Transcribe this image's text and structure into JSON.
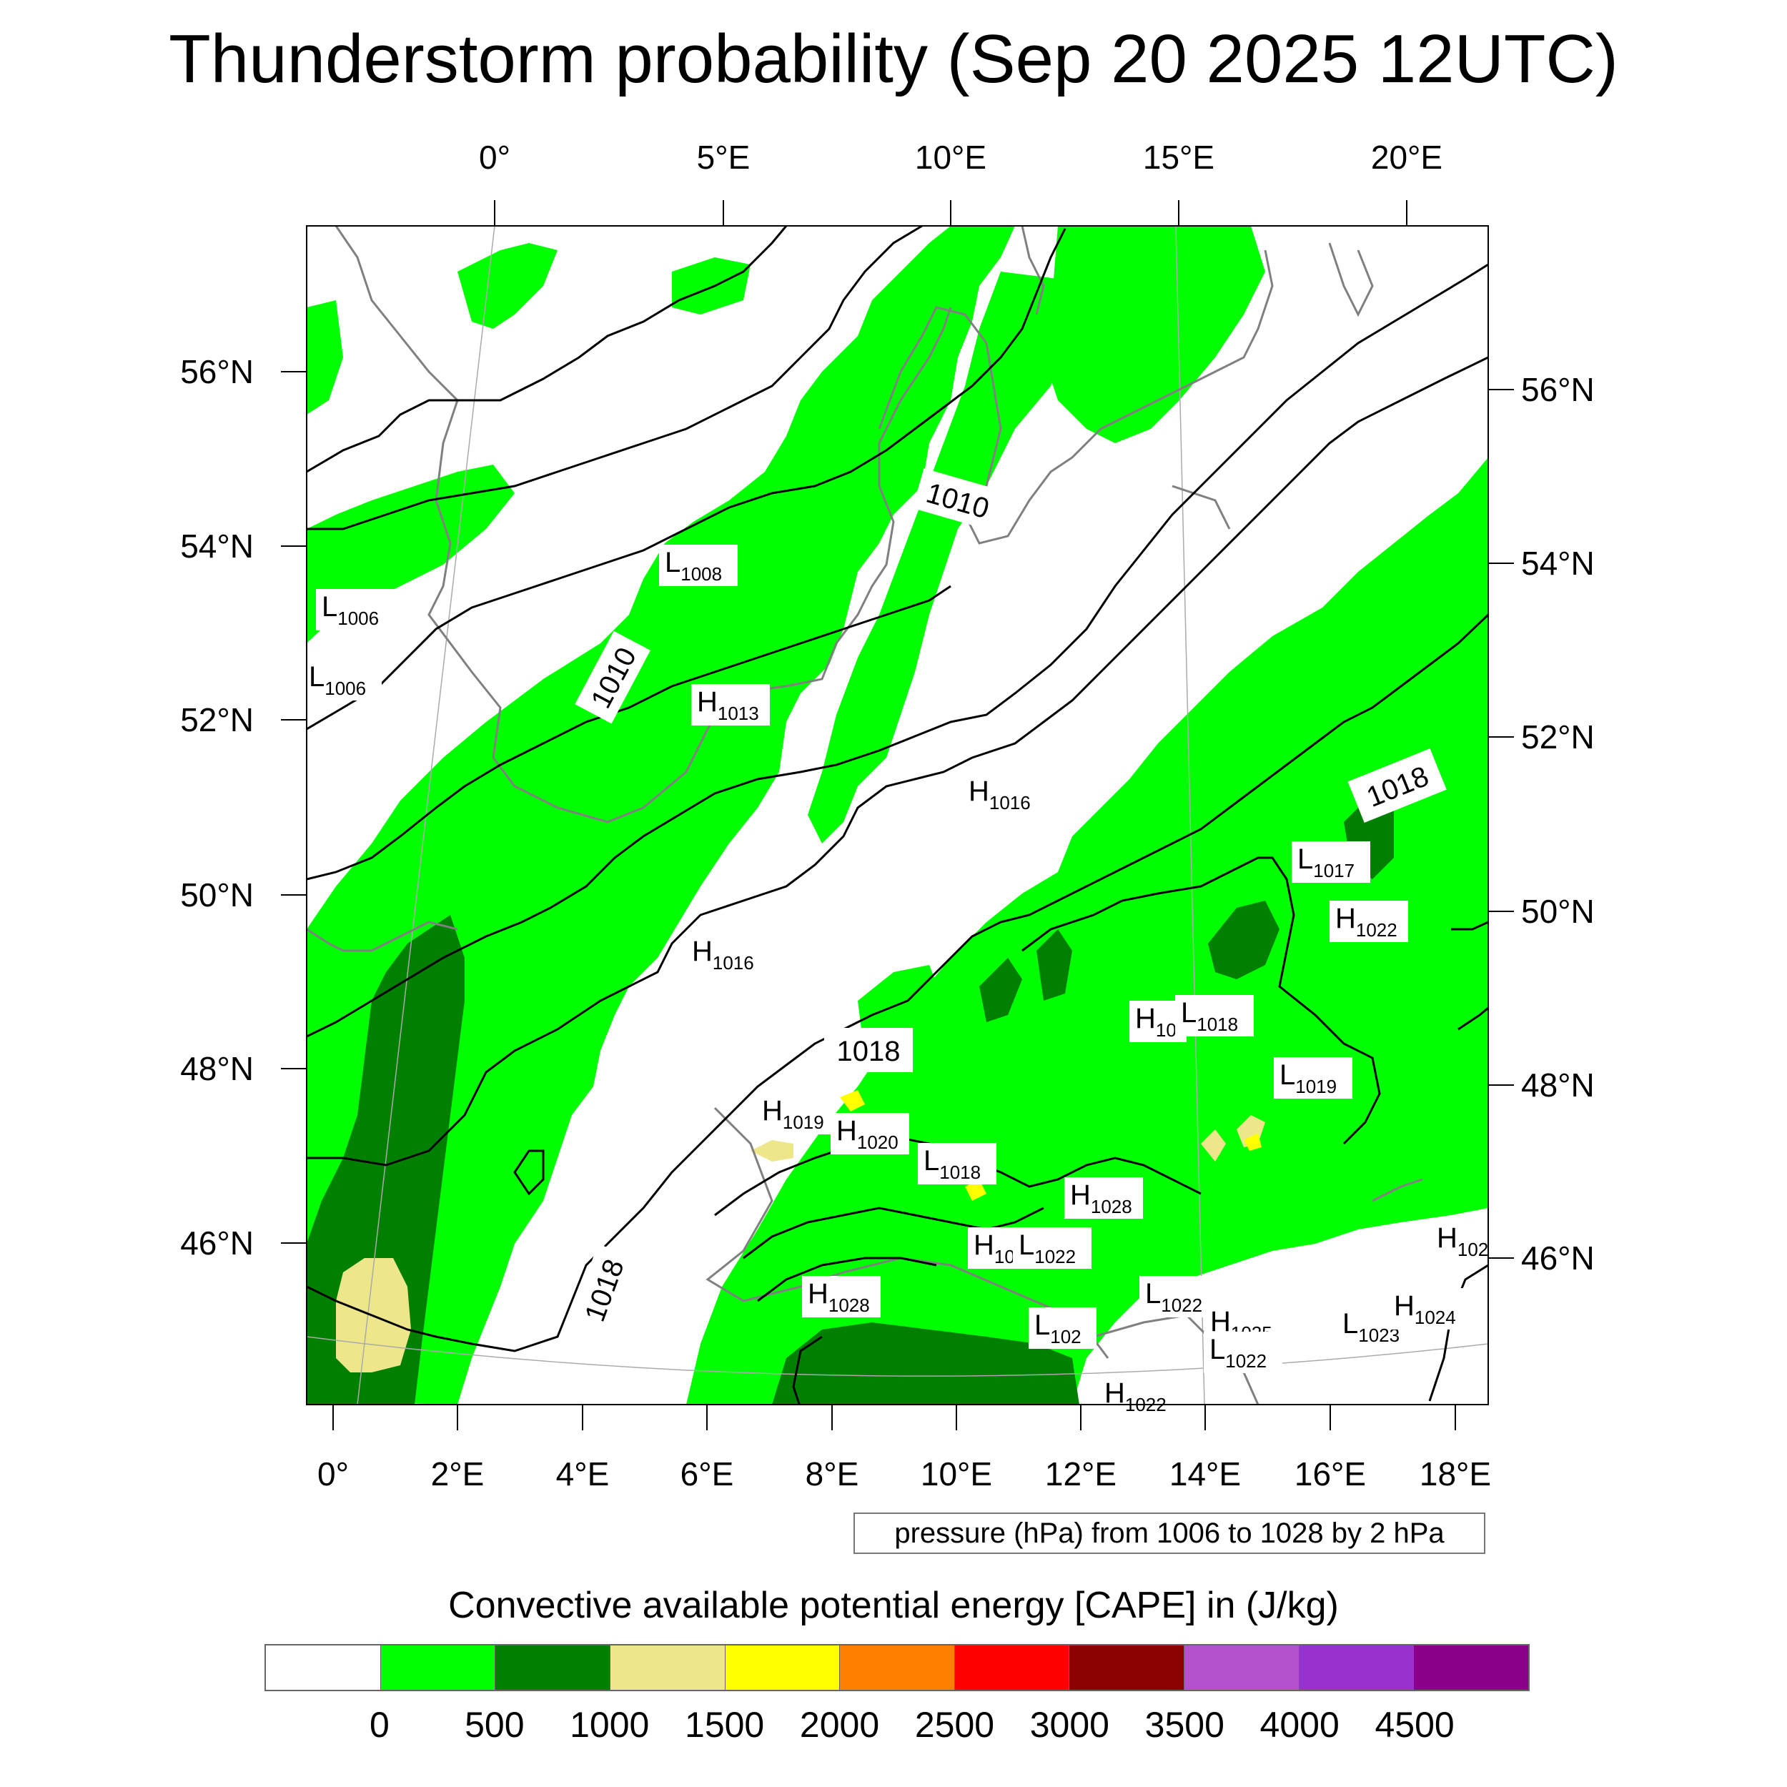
{
  "title": "Thunderstorm probability (Sep 20 2025 12UTC)",
  "top_lon_labels": [
    "0°",
    "5°E",
    "10°E",
    "15°E",
    "20°E"
  ],
  "bottom_lon_labels": [
    "0°",
    "2°E",
    "4°E",
    "6°E",
    "8°E",
    "10°E",
    "12°E",
    "14°E",
    "16°E",
    "18°E"
  ],
  "left_lat_labels": [
    "56°N",
    "54°N",
    "52°N",
    "50°N",
    "48°N",
    "46°N"
  ],
  "right_lat_labels": [
    "56°N",
    "54°N",
    "52°N",
    "50°N",
    "48°N",
    "46°N"
  ],
  "pressure_centers": [
    {
      "type": "L",
      "value": "1006"
    },
    {
      "type": "L",
      "value": "1006"
    },
    {
      "type": "L",
      "value": "1008"
    },
    {
      "type": "H",
      "value": "1013"
    },
    {
      "type": "H",
      "value": "1016"
    },
    {
      "type": "H",
      "value": "1016"
    },
    {
      "type": "L",
      "value": "1017"
    },
    {
      "type": "H",
      "value": "1022"
    },
    {
      "type": "H",
      "value": "10"
    },
    {
      "type": "L",
      "value": "1018"
    },
    {
      "type": "L",
      "value": "1019"
    },
    {
      "type": "H",
      "value": "1019"
    },
    {
      "type": "H",
      "value": "1020"
    },
    {
      "type": "L",
      "value": "1018"
    },
    {
      "type": "H",
      "value": "1028"
    },
    {
      "type": "H",
      "value": "10"
    },
    {
      "type": "L",
      "value": "1022"
    },
    {
      "type": "H",
      "value": "1028"
    },
    {
      "type": "L",
      "value": "1022"
    },
    {
      "type": "L",
      "value": "102"
    },
    {
      "type": "H",
      "value": "1025"
    },
    {
      "type": "L",
      "value": "1022"
    },
    {
      "type": "L",
      "value": "1023"
    },
    {
      "type": "H",
      "value": "1024"
    },
    {
      "type": "H",
      "value": "102"
    },
    {
      "type": "H",
      "value": "1022"
    }
  ],
  "isobar_labels": [
    "1010",
    "1010",
    "1018",
    "1018",
    "1018"
  ],
  "pressure_note": "pressure (hPa) from 1006 to 1028 by 2 hPa",
  "legend": {
    "title": "Convective available potential energy [CAPE] in (J/kg)",
    "colors": [
      "#ffffff",
      "#00ff00",
      "#007f00",
      "#ede68a",
      "#ffff00",
      "#ff7f00",
      "#ff0000",
      "#8b0000",
      "#b452cd",
      "#9932cc",
      "#8b008b"
    ],
    "ticks": [
      "0",
      "500",
      "1000",
      "1500",
      "2000",
      "2500",
      "3000",
      "3500",
      "4000",
      "4500"
    ]
  },
  "colors": {
    "cape_0_500": "#00ff00",
    "cape_500_1000": "#007f00",
    "cape_1000_1500": "#ede68a",
    "cape_1500_2000": "#ffff00",
    "isobar": "#000000",
    "coastline": "#808080"
  }
}
